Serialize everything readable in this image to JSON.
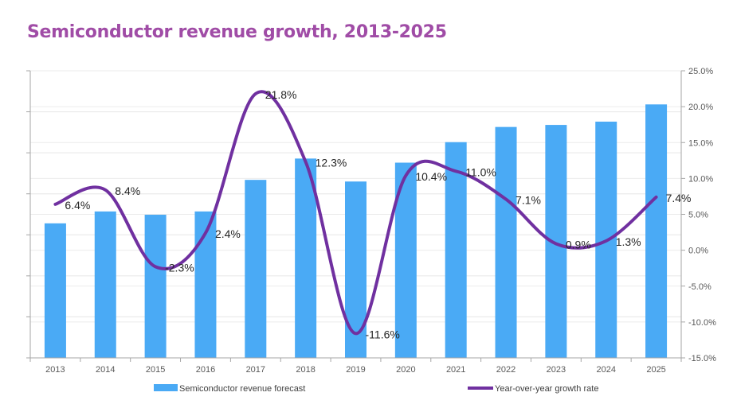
{
  "chart_data": {
    "type": "bar+line",
    "title": "Semiconductor revenue growth, 2013-2025",
    "categories": [
      "2013",
      "2014",
      "2015",
      "2016",
      "2017",
      "2018",
      "2019",
      "2020",
      "2021",
      "2022",
      "2023",
      "2024",
      "2025"
    ],
    "series": [
      {
        "name": "Semiconductor revenue forecast",
        "type": "bar",
        "axis": "left",
        "color": "#4aaaf5",
        "values": [
          3.28,
          3.57,
          3.49,
          3.57,
          4.34,
          4.86,
          4.3,
          4.76,
          5.26,
          5.63,
          5.68,
          5.76,
          6.18
        ]
      },
      {
        "name": "Year-over-year growth rate",
        "type": "line",
        "smooth": true,
        "axis": "right",
        "color": "#7030a0",
        "values": [
          6.4,
          8.4,
          -2.3,
          2.4,
          21.8,
          12.3,
          -11.6,
          10.4,
          11.0,
          7.1,
          0.9,
          1.3,
          7.4
        ],
        "labels": [
          "6.4%",
          "8.4%",
          "-2.3%",
          "2.4%",
          "21.8%",
          "12.3%",
          "-11.6%",
          "10.4%",
          "11.0%",
          "7.1%",
          "0.9%",
          "1.3%",
          "7.4%"
        ]
      }
    ],
    "left_axis": {
      "label": "",
      "ylim": [
        0,
        7
      ],
      "tick_count": 7,
      "tick_labels_shown": false
    },
    "right_axis": {
      "label": "",
      "ylim": [
        -15,
        25
      ],
      "ticks": [
        25,
        20,
        15,
        10,
        5,
        0,
        -5,
        -10,
        -15
      ],
      "tick_labels": [
        "25.0%",
        "20.0%",
        "15.0%",
        "10.0%",
        "5.0%",
        "0.0%",
        "-5.0%",
        "-10.0%",
        "-15.0%"
      ]
    },
    "xlabel": "",
    "grid": true,
    "legend": {
      "position": "bottom",
      "entries": [
        "Semiconductor revenue forecast",
        "Year-over-year growth rate"
      ]
    }
  }
}
